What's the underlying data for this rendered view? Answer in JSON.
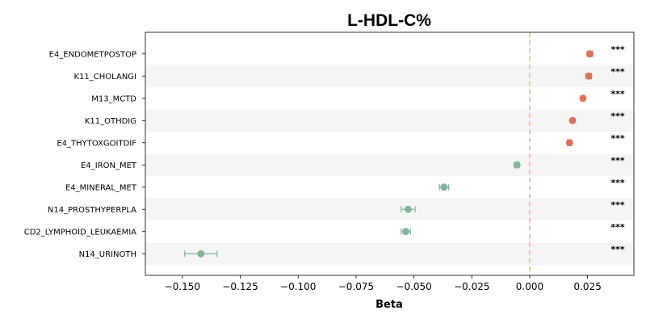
{
  "chart_data": {
    "type": "scatter",
    "subtype": "forest-plot",
    "title": "L-HDL-C%",
    "xlabel": "Beta",
    "ylabel": "",
    "xlim": [
      -0.166,
      0.045
    ],
    "xticks": [
      -0.15,
      -0.125,
      -0.1,
      -0.075,
      -0.05,
      -0.025,
      0.0,
      0.025
    ],
    "xtick_labels": [
      "−0.150",
      "−0.125",
      "−0.100",
      "−0.075",
      "−0.050",
      "−0.025",
      "0.000",
      "0.025"
    ],
    "reference_line": {
      "x": 0.0,
      "style": "dashed",
      "color": "#f3c98b"
    },
    "colors": {
      "positive": "#d9735a",
      "negative": "#86b39c",
      "stripe": "#f5f5f5"
    },
    "grid": false,
    "legend": "none",
    "categories": [
      "E4_ENDOMETPOSTOP",
      "K11_CHOLANGI",
      "M13_MCTD",
      "K11_OTHDIG",
      "E4_THYTOXGOITDIF",
      "E4_IRON_MET",
      "E4_MINERAL_MET",
      "N14_PROSTHYPERPLA",
      "CD2_LYMPHOID_LEUKAEMIA",
      "N14_URINOTH"
    ],
    "beta": [
      0.026,
      0.0255,
      0.023,
      0.0185,
      0.0172,
      -0.0055,
      -0.037,
      -0.0525,
      -0.0535,
      -0.142
    ],
    "ci_low": [
      0.0248,
      0.0243,
      0.0223,
      0.0178,
      0.0163,
      -0.0065,
      -0.039,
      -0.0555,
      -0.0555,
      -0.149
    ],
    "ci_high": [
      0.0272,
      0.0267,
      0.0237,
      0.0192,
      0.0181,
      -0.0045,
      -0.035,
      -0.0495,
      -0.0515,
      -0.135
    ],
    "significance": [
      "***",
      "***",
      "***",
      "***",
      "***",
      "***",
      "***",
      "***",
      "***",
      "***"
    ]
  }
}
